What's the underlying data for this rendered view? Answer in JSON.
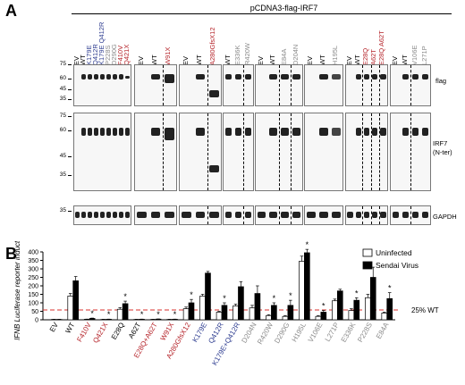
{
  "panel_a": {
    "letter": "A",
    "construct": "pCDNA3-flag-IRF7",
    "blot_labels": {
      "flag": "flag",
      "irf7": "IRF7",
      "irf7_sub": "(N-ter)",
      "gapdh": "GAPDH"
    },
    "mw_markers": {
      "flag": [
        "75",
        "60",
        "45",
        "35"
      ],
      "irf7": [
        "75",
        "60",
        "45",
        "35"
      ],
      "gapdh": [
        "35"
      ]
    },
    "groups": [
      {
        "lanes": [
          {
            "label": "EV",
            "color": "black"
          },
          {
            "label": "WT",
            "color": "black"
          },
          {
            "label": "K179E",
            "color": "blue"
          },
          {
            "label": "Q412R",
            "color": "blue"
          },
          {
            "label": "K179E Q412R",
            "color": "blue"
          },
          {
            "label": "P228S",
            "color": "gray"
          },
          {
            "label": "D290G",
            "color": "gray"
          },
          {
            "label": "F410V",
            "color": "red"
          },
          {
            "label": "Q421X",
            "color": "red"
          }
        ]
      },
      {
        "lanes": [
          {
            "label": "EV",
            "color": "black"
          },
          {
            "label": "WT",
            "color": "black"
          },
          {
            "label": "W91X",
            "color": "red"
          }
        ]
      },
      {
        "lanes": [
          {
            "label": "EV",
            "color": "black"
          },
          {
            "label": "WT",
            "color": "black"
          },
          {
            "label": "A280GfsX12",
            "color": "red"
          }
        ]
      },
      {
        "lanes": [
          {
            "label": "WT",
            "color": "black"
          },
          {
            "label": "E336K",
            "color": "gray"
          },
          {
            "label": "R420W",
            "color": "gray"
          }
        ]
      },
      {
        "lanes": [
          {
            "label": "EV",
            "color": "black"
          },
          {
            "label": "WT",
            "color": "black"
          },
          {
            "label": "E84A",
            "color": "gray"
          },
          {
            "label": "D204N",
            "color": "gray"
          }
        ]
      },
      {
        "lanes": [
          {
            "label": "EV",
            "color": "black"
          },
          {
            "label": "WT",
            "color": "black"
          },
          {
            "label": "H195L",
            "color": "gray"
          }
        ]
      },
      {
        "lanes": [
          {
            "label": "EV",
            "color": "black"
          },
          {
            "label": "WT",
            "color": "black"
          },
          {
            "label": "E28Q",
            "color": "red"
          },
          {
            "label": "A62T",
            "color": "red"
          },
          {
            "label": "E28Q A62T",
            "color": "red"
          }
        ]
      },
      {
        "lanes": [
          {
            "label": "EV",
            "color": "black"
          },
          {
            "label": "WT",
            "color": "black"
          },
          {
            "label": "V106E",
            "color": "gray"
          },
          {
            "label": "L271P",
            "color": "gray"
          }
        ]
      }
    ]
  },
  "panel_b": {
    "letter": "B",
    "chart_data": {
      "type": "bar",
      "ylabel": "IFNB Luciferase reporter induction",
      "ylim": [
        0,
        400
      ],
      "yticks": [
        0,
        50,
        100,
        150,
        200,
        250,
        300,
        350,
        400
      ],
      "reference_line": {
        "value": 58,
        "label": "25% WT",
        "color": "#d9302c"
      },
      "legend_position": "top-right",
      "categories": [
        "EV",
        "WT",
        "F410V",
        "Q421X",
        "E28Q",
        "A62T",
        "E28Q+A62T",
        "W91X",
        "A280GfsX12",
        "K179E",
        "Q412R",
        "K179E+Q412R",
        "D204N",
        "R420W",
        "D290G",
        "H195L",
        "V106E",
        "L271P",
        "E336K",
        "P228S",
        "E84A"
      ],
      "category_colors": [
        "#000000",
        "#000000",
        "#b5242a",
        "#b5242a",
        "#000000",
        "#000000",
        "#b5242a",
        "#b5242a",
        "#b5242a",
        "#2c3b8f",
        "#2c3b8f",
        "#2c3b8f",
        "#8a8a8a",
        "#8a8a8a",
        "#8a8a8a",
        "#8a8a8a",
        "#8a8a8a",
        "#8a8a8a",
        "#8a8a8a",
        "#8a8a8a",
        "#8a8a8a"
      ],
      "series": [
        {
          "name": "Uninfected",
          "fill": "#ffffff",
          "values": [
            2,
            140,
            3,
            2,
            62,
            2,
            2,
            2,
            65,
            140,
            45,
            82,
            70,
            25,
            20,
            345,
            20,
            112,
            55,
            130,
            40
          ],
          "errors": [
            1,
            15,
            1,
            1,
            10,
            1,
            1,
            1,
            10,
            10,
            5,
            10,
            15,
            5,
            5,
            30,
            5,
            10,
            10,
            20,
            5
          ]
        },
        {
          "name": "Sendai Virus",
          "fill": "#000000",
          "values": [
            2,
            230,
            8,
            3,
            95,
            3,
            4,
            3,
            100,
            275,
            85,
            195,
            155,
            85,
            85,
            395,
            45,
            170,
            115,
            250,
            125
          ],
          "errors": [
            1,
            25,
            2,
            1,
            15,
            1,
            1,
            1,
            20,
            10,
            15,
            30,
            45,
            15,
            30,
            20,
            10,
            10,
            15,
            60,
            35
          ]
        }
      ],
      "significance": [
        false,
        false,
        true,
        true,
        true,
        true,
        true,
        true,
        true,
        false,
        true,
        false,
        false,
        true,
        true,
        true,
        true,
        false,
        true,
        false,
        true
      ]
    }
  }
}
